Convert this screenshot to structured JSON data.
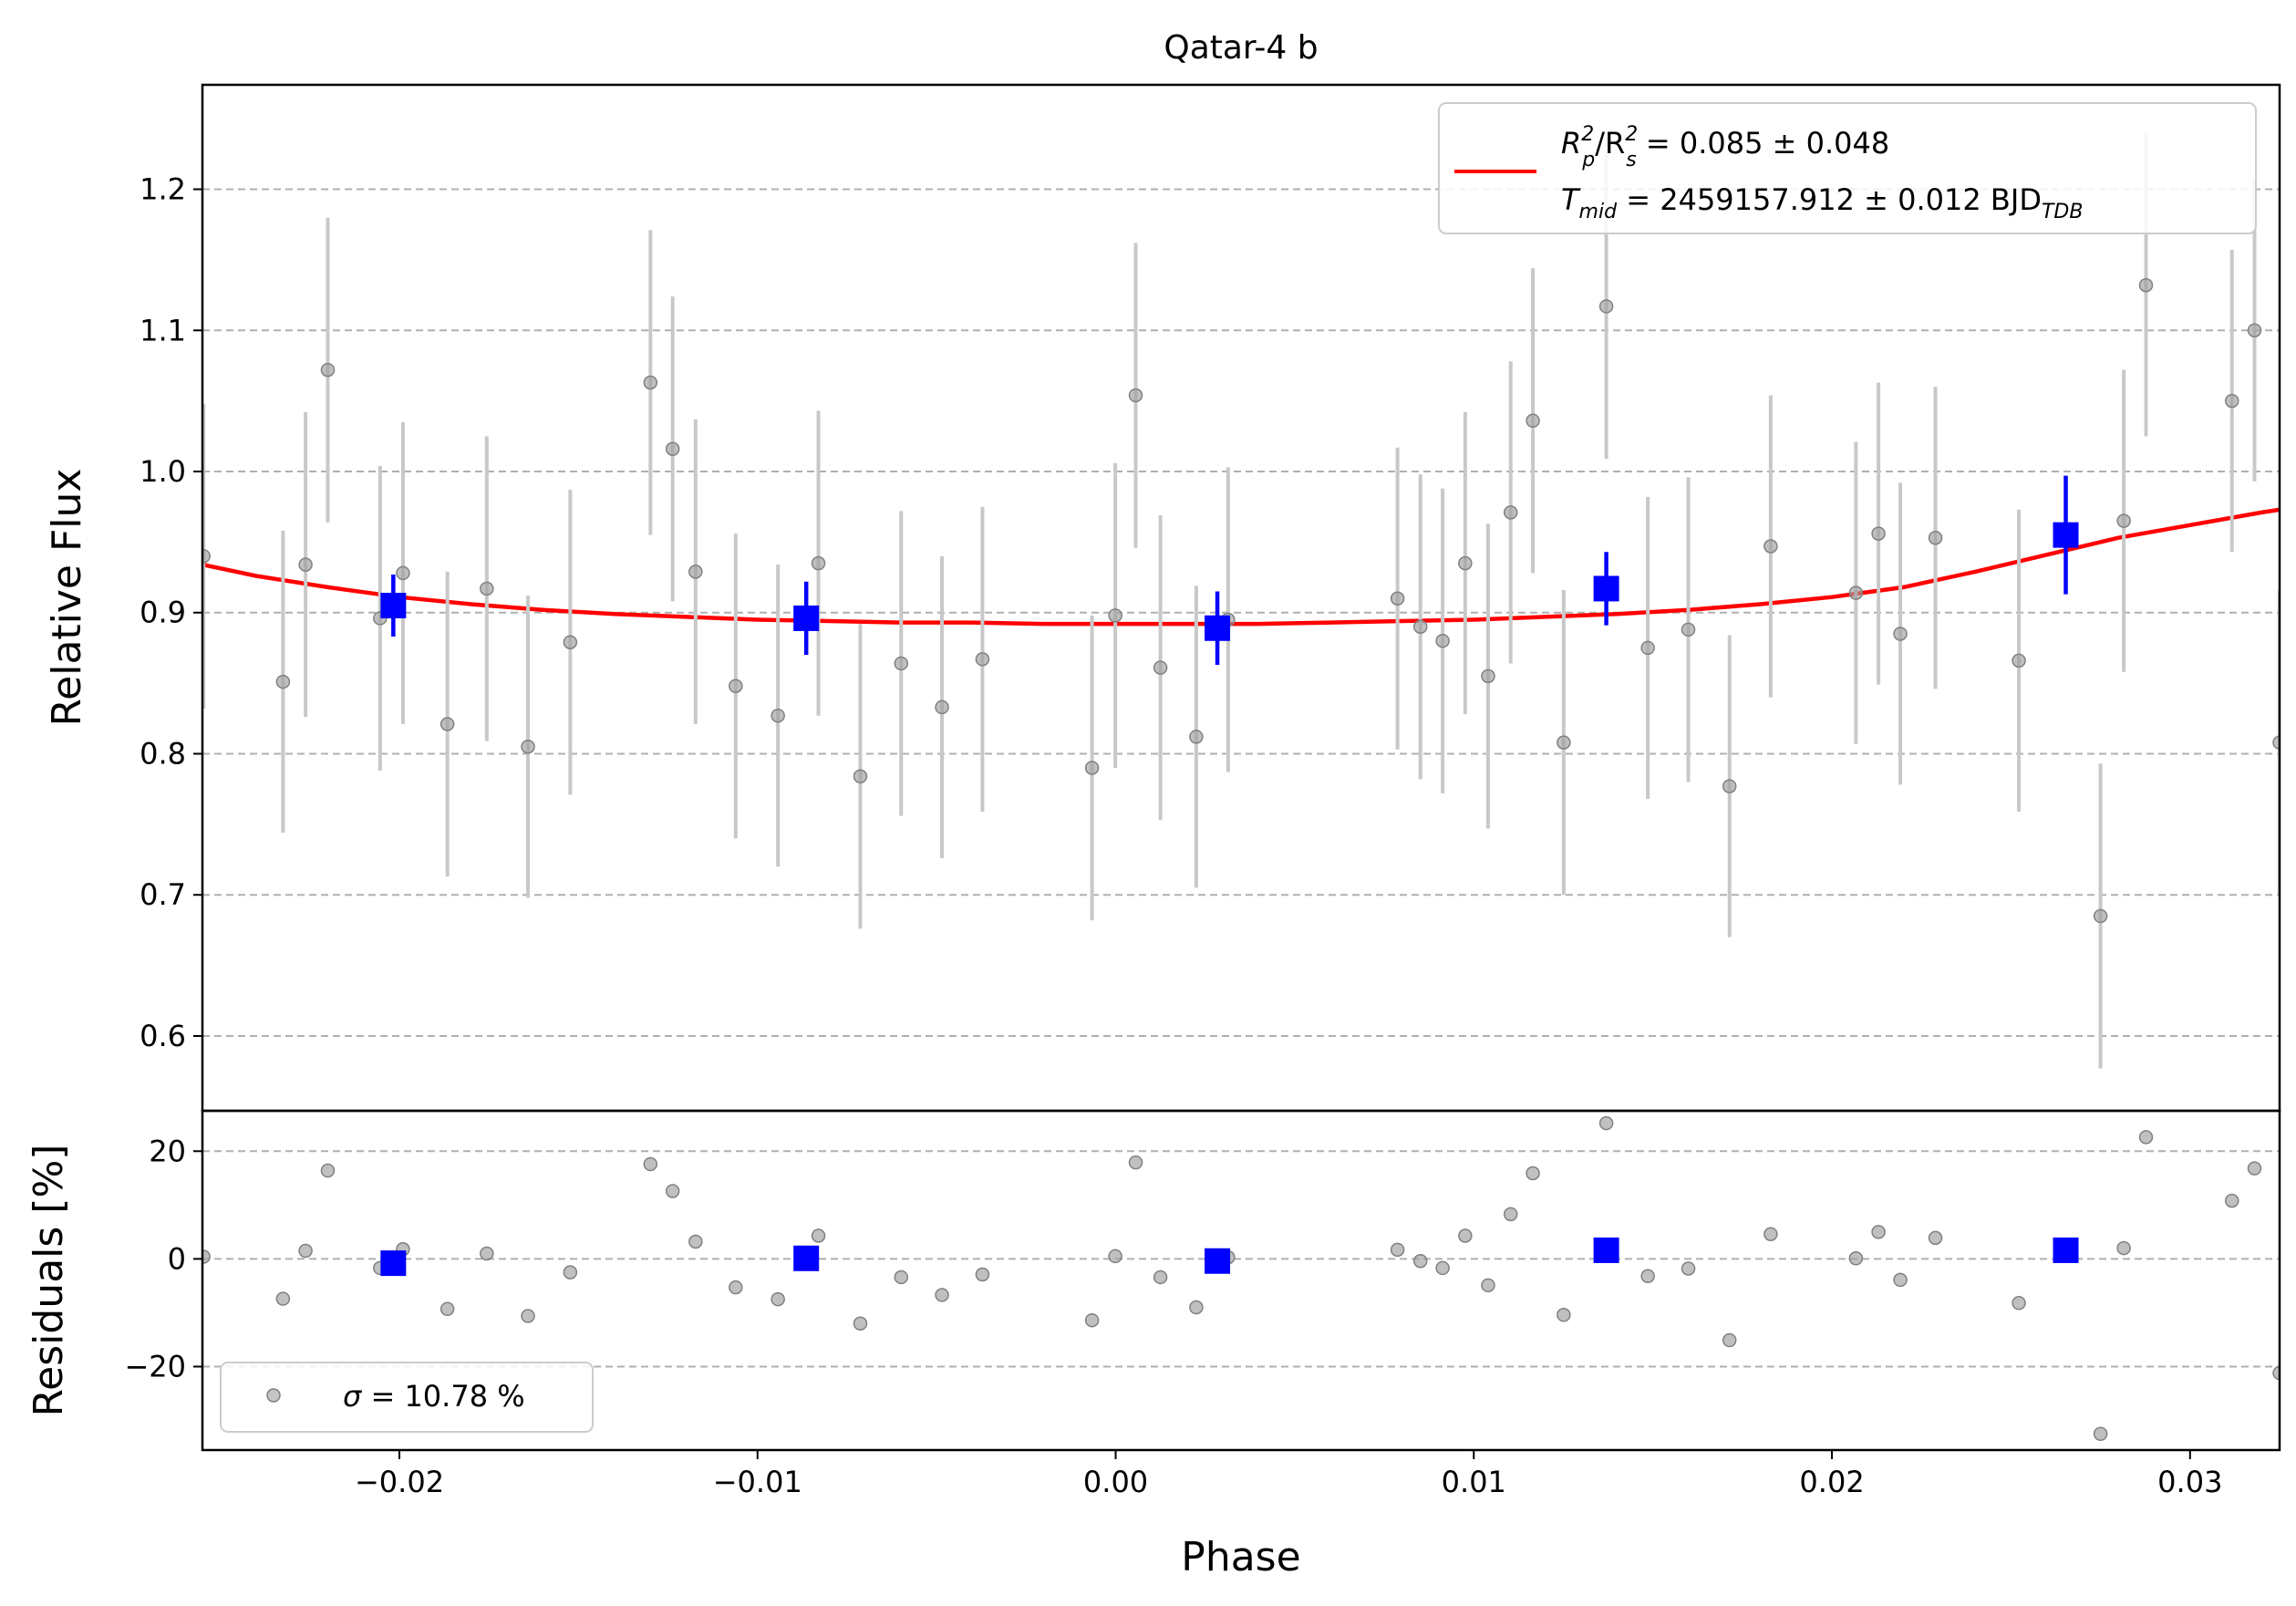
{
  "title": "Qatar-4 b",
  "colors": {
    "raw": "#9e9e9e",
    "raw_err": "#c8c8c8",
    "binned": "#0000ff",
    "model": "#ff0000",
    "grid": "#b0b0b0"
  },
  "chart_data": [
    {
      "type": "scatter",
      "panel": "top",
      "title": "Qatar-4 b",
      "ylabel": "Relative Flux",
      "xlim": [
        -0.0255,
        0.0325
      ],
      "ylim": [
        0.547,
        1.274
      ],
      "yticks": [
        0.6,
        0.7,
        0.8,
        0.9,
        1.0,
        1.1,
        1.2
      ],
      "ytick_labels": [
        "0.6",
        "0.7",
        "0.8",
        "0.9",
        "1.0",
        "1.1",
        "1.2"
      ],
      "grid": "horizontal dashed",
      "legend": {
        "placement": "top-right",
        "line1_main": "R",
        "line1_sub1": "p",
        "line1_mid": "/R",
        "line1_sub2": "s",
        "line1_sup": "2",
        "line1_value": " = 0.085 ± 0.048",
        "line2_main": "T",
        "line2_sub": "mid",
        "line2_value": " = 2459157.912 ± 0.012 BJD",
        "line2_unit_sub": "TDB"
      },
      "raw_points": [
        {
          "x": -0.02547,
          "y": 0.94,
          "err": 0.108
        },
        {
          "x": -0.02325,
          "y": 0.851,
          "err": 0.107
        },
        {
          "x": -0.02262,
          "y": 0.934,
          "err": 0.108
        },
        {
          "x": -0.022,
          "y": 1.072,
          "err": 0.108
        },
        {
          "x": -0.02054,
          "y": 0.896,
          "err": 0.108
        },
        {
          "x": -0.0199,
          "y": 0.928,
          "err": 0.107
        },
        {
          "x": -0.01866,
          "y": 0.821,
          "err": 0.108
        },
        {
          "x": -0.01756,
          "y": 0.917,
          "err": 0.108
        },
        {
          "x": -0.01641,
          "y": 0.805,
          "err": 0.107
        },
        {
          "x": -0.01523,
          "y": 0.879,
          "err": 0.108
        },
        {
          "x": -0.01299,
          "y": 1.063,
          "err": 0.108
        },
        {
          "x": -0.01237,
          "y": 1.016,
          "err": 0.108
        },
        {
          "x": -0.01173,
          "y": 0.929,
          "err": 0.108
        },
        {
          "x": -0.01061,
          "y": 0.848,
          "err": 0.108
        },
        {
          "x": -0.00943,
          "y": 0.827,
          "err": 0.107
        },
        {
          "x": -0.0083,
          "y": 0.935,
          "err": 0.108
        },
        {
          "x": -0.00713,
          "y": 0.784,
          "err": 0.108
        },
        {
          "x": -0.00599,
          "y": 0.864,
          "err": 0.108
        },
        {
          "x": -0.00485,
          "y": 0.833,
          "err": 0.107
        },
        {
          "x": -0.00372,
          "y": 0.867,
          "err": 0.108
        },
        {
          "x": -0.00066,
          "y": 0.79,
          "err": 0.108
        },
        {
          "x": -1e-05,
          "y": 0.898,
          "err": 0.108
        },
        {
          "x": 0.00056,
          "y": 1.054,
          "err": 0.108
        },
        {
          "x": 0.00125,
          "y": 0.861,
          "err": 0.108
        },
        {
          "x": 0.00225,
          "y": 0.812,
          "err": 0.107
        },
        {
          "x": 0.00314,
          "y": 0.895,
          "err": 0.108
        },
        {
          "x": 0.00787,
          "y": 0.91,
          "err": 0.107
        },
        {
          "x": 0.00851,
          "y": 0.89,
          "err": 0.108
        },
        {
          "x": 0.00913,
          "y": 0.88,
          "err": 0.108
        },
        {
          "x": 0.00976,
          "y": 0.935,
          "err": 0.107
        },
        {
          "x": 0.0104,
          "y": 0.855,
          "err": 0.108
        },
        {
          "x": 0.01103,
          "y": 0.971,
          "err": 0.107
        },
        {
          "x": 0.01165,
          "y": 1.036,
          "err": 0.108
        },
        {
          "x": 0.01251,
          "y": 0.808,
          "err": 0.108
        },
        {
          "x": 0.0137,
          "y": 1.117,
          "err": 0.108
        },
        {
          "x": 0.01486,
          "y": 0.875,
          "err": 0.107
        },
        {
          "x": 0.01599,
          "y": 0.888,
          "err": 0.108
        },
        {
          "x": 0.01714,
          "y": 0.777,
          "err": 0.107
        },
        {
          "x": 0.01829,
          "y": 0.947,
          "err": 0.107
        },
        {
          "x": 0.02067,
          "y": 0.914,
          "err": 0.107
        },
        {
          "x": 0.0213,
          "y": 0.956,
          "err": 0.107
        },
        {
          "x": 0.02191,
          "y": 0.885,
          "err": 0.107
        },
        {
          "x": 0.02289,
          "y": 0.953,
          "err": 0.107
        },
        {
          "x": 0.02522,
          "y": 0.866,
          "err": 0.107
        },
        {
          "x": 0.0275,
          "y": 0.685,
          "err": 0.108
        },
        {
          "x": 0.02815,
          "y": 0.965,
          "err": 0.107
        },
        {
          "x": 0.02877,
          "y": 1.132,
          "err": 0.107
        },
        {
          "x": 0.03117,
          "y": 1.05,
          "err": 0.107
        },
        {
          "x": 0.0318,
          "y": 1.1,
          "err": 0.107
        },
        {
          "x": 0.0325,
          "y": 0.808,
          "err": 0.108
        }
      ],
      "binned_points": [
        {
          "x": -0.02017,
          "y": 0.905,
          "err": 0.022
        },
        {
          "x": -0.00864,
          "y": 0.896,
          "err": 0.026
        },
        {
          "x": 0.00284,
          "y": 0.889,
          "err": 0.026
        },
        {
          "x": 0.0137,
          "y": 0.917,
          "err": 0.026
        },
        {
          "x": 0.02653,
          "y": 0.955,
          "err": 0.042
        }
      ],
      "model": {
        "x": [
          -0.0255,
          -0.024,
          -0.022,
          -0.02,
          -0.018,
          -0.016,
          -0.014,
          -0.012,
          -0.01,
          -0.008,
          -0.006,
          -0.004,
          -0.002,
          0.0,
          0.002,
          0.004,
          0.006,
          0.008,
          0.01,
          0.012,
          0.014,
          0.016,
          0.018,
          0.02,
          0.022,
          0.024,
          0.026,
          0.028,
          0.03,
          0.032,
          0.0325
        ],
        "y": [
          0.934,
          0.926,
          0.918,
          0.911,
          0.906,
          0.902,
          0.899,
          0.897,
          0.895,
          0.894,
          0.893,
          0.893,
          0.892,
          0.892,
          0.892,
          0.892,
          0.893,
          0.894,
          0.895,
          0.897,
          0.899,
          0.902,
          0.906,
          0.911,
          0.918,
          0.929,
          0.941,
          0.953,
          0.962,
          0.971,
          0.973
        ]
      }
    },
    {
      "type": "scatter",
      "panel": "bottom",
      "xlabel": "Phase",
      "ylabel": "Residuals [%]",
      "xlim": [
        -0.0255,
        0.0325
      ],
      "ylim": [
        -35.5,
        27.5
      ],
      "xticks": [
        -0.02,
        -0.01,
        0.0,
        0.01,
        0.02,
        0.03
      ],
      "xtick_labels": [
        "−0.02",
        "−0.01",
        "0.00",
        "0.01",
        "0.02",
        "0.03"
      ],
      "yticks": [
        -20,
        0,
        20
      ],
      "ytick_labels": [
        "−20",
        "0",
        "20"
      ],
      "grid": "horizontal dashed",
      "legend": {
        "placement": "bottom-left",
        "sigma_symbol": "σ",
        "text": " = 10.78 %"
      },
      "raw_points": [
        {
          "x": -0.02547,
          "y": 0.4
        },
        {
          "x": -0.02325,
          "y": -7.4
        },
        {
          "x": -0.02262,
          "y": 1.5
        },
        {
          "x": -0.022,
          "y": 16.4
        },
        {
          "x": -0.02054,
          "y": -1.7
        },
        {
          "x": -0.0199,
          "y": 1.8
        },
        {
          "x": -0.01866,
          "y": -9.3
        },
        {
          "x": -0.01756,
          "y": 1.0
        },
        {
          "x": -0.01641,
          "y": -10.6
        },
        {
          "x": -0.01523,
          "y": -2.5
        },
        {
          "x": -0.01299,
          "y": 17.6
        },
        {
          "x": -0.01237,
          "y": 12.6
        },
        {
          "x": -0.01173,
          "y": 3.2
        },
        {
          "x": -0.01061,
          "y": -5.3
        },
        {
          "x": -0.00943,
          "y": -7.5
        },
        {
          "x": -0.0083,
          "y": 4.3
        },
        {
          "x": -0.00713,
          "y": -12.0
        },
        {
          "x": -0.00599,
          "y": -3.4
        },
        {
          "x": -0.00485,
          "y": -6.7
        },
        {
          "x": -0.00372,
          "y": -2.9
        },
        {
          "x": -0.00066,
          "y": -11.4
        },
        {
          "x": -1e-05,
          "y": 0.5
        },
        {
          "x": 0.00056,
          "y": 17.9
        },
        {
          "x": 0.00125,
          "y": -3.4
        },
        {
          "x": 0.00225,
          "y": -9.0
        },
        {
          "x": 0.00314,
          "y": 0.3
        },
        {
          "x": 0.00787,
          "y": 1.7
        },
        {
          "x": 0.00851,
          "y": -0.4
        },
        {
          "x": 0.00913,
          "y": -1.7
        },
        {
          "x": 0.00976,
          "y": 4.3
        },
        {
          "x": 0.0104,
          "y": -4.9
        },
        {
          "x": 0.01103,
          "y": 8.3
        },
        {
          "x": 0.01165,
          "y": 15.9
        },
        {
          "x": 0.01251,
          "y": -10.4
        },
        {
          "x": 0.0137,
          "y": 25.2
        },
        {
          "x": 0.01486,
          "y": -3.2
        },
        {
          "x": 0.01599,
          "y": -1.8
        },
        {
          "x": 0.01714,
          "y": -15.1
        },
        {
          "x": 0.01829,
          "y": 4.6
        },
        {
          "x": 0.02067,
          "y": 0.1
        },
        {
          "x": 0.0213,
          "y": 5.0
        },
        {
          "x": 0.02191,
          "y": -3.9
        },
        {
          "x": 0.02289,
          "y": 3.9
        },
        {
          "x": 0.02522,
          "y": -8.2
        },
        {
          "x": 0.0275,
          "y": -32.5
        },
        {
          "x": 0.02815,
          "y": 2.0
        },
        {
          "x": 0.02877,
          "y": 22.6
        },
        {
          "x": 0.03117,
          "y": 10.8
        },
        {
          "x": 0.0318,
          "y": 16.8
        },
        {
          "x": 0.0325,
          "y": -21.2
        }
      ],
      "binned_points": [
        {
          "x": -0.02017,
          "y": -0.8
        },
        {
          "x": -0.00864,
          "y": 0.1
        },
        {
          "x": 0.00284,
          "y": -0.4
        },
        {
          "x": 0.0137,
          "y": 1.6
        },
        {
          "x": 0.02653,
          "y": 1.6
        }
      ]
    }
  ]
}
